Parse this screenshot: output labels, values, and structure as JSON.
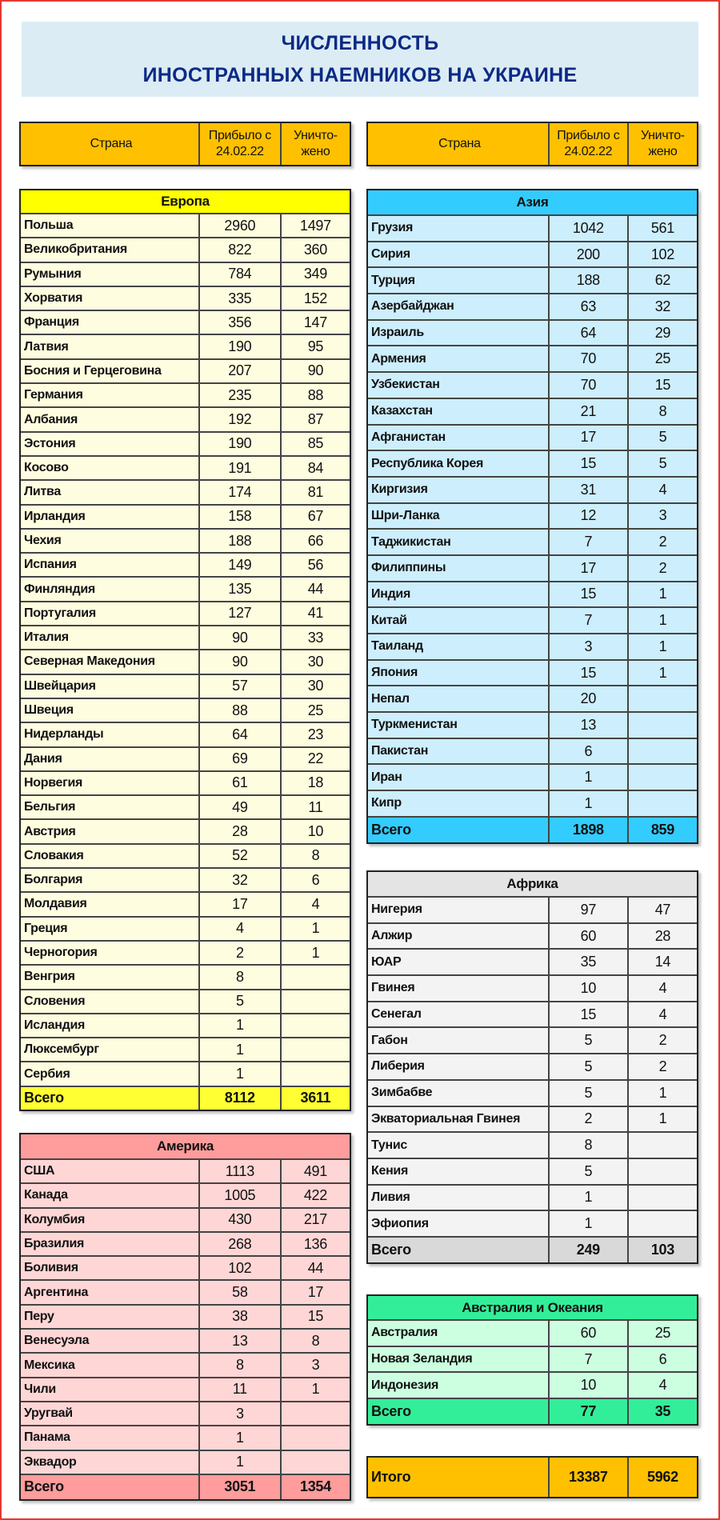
{
  "title": {
    "line1": "ЧИСЛЕННОСТЬ",
    "line2": "ИНОСТРАННЫХ НАЕМНИКОВ НА УКРАИНЕ"
  },
  "column_headers": {
    "country": "Страна",
    "arrived": "Прибыло с 24.02.22",
    "destroyed": "Уничто-жено"
  },
  "colors": {
    "header": "#FFC000",
    "europe": "#FFFF00",
    "asia": "#33CCFF",
    "africa": "#D9D9D9",
    "america": "#FF9999",
    "oceania": "#33EE99"
  },
  "regions": {
    "europe": {
      "name": "Европа",
      "rows": [
        [
          "Польша",
          "2960",
          "1497"
        ],
        [
          "Великобритания",
          "822",
          "360"
        ],
        [
          "Румыния",
          "784",
          "349"
        ],
        [
          "Хорватия",
          "335",
          "152"
        ],
        [
          "Франция",
          "356",
          "147"
        ],
        [
          "Латвия",
          "190",
          "95"
        ],
        [
          "Босния и Герцеговина",
          "207",
          "90"
        ],
        [
          "Германия",
          "235",
          "88"
        ],
        [
          "Албания",
          "192",
          "87"
        ],
        [
          "Эстония",
          "190",
          "85"
        ],
        [
          "Косово",
          "191",
          "84"
        ],
        [
          "Литва",
          "174",
          "81"
        ],
        [
          "Ирландия",
          "158",
          "67"
        ],
        [
          "Чехия",
          "188",
          "66"
        ],
        [
          "Испания",
          "149",
          "56"
        ],
        [
          "Финляндия",
          "135",
          "44"
        ],
        [
          "Португалия",
          "127",
          "41"
        ],
        [
          "Италия",
          "90",
          "33"
        ],
        [
          "Северная Македония",
          "90",
          "30"
        ],
        [
          "Швейцария",
          "57",
          "30"
        ],
        [
          "Швеция",
          "88",
          "25"
        ],
        [
          "Нидерланды",
          "64",
          "23"
        ],
        [
          "Дания",
          "69",
          "22"
        ],
        [
          "Норвегия",
          "61",
          "18"
        ],
        [
          "Бельгия",
          "49",
          "11"
        ],
        [
          "Австрия",
          "28",
          "10"
        ],
        [
          "Словакия",
          "52",
          "8"
        ],
        [
          "Болгария",
          "32",
          "6"
        ],
        [
          "Молдавия",
          "17",
          "4"
        ],
        [
          "Греция",
          "4",
          "1"
        ],
        [
          "Черногория",
          "2",
          "1"
        ],
        [
          "Венгрия",
          "8",
          ""
        ],
        [
          "Словения",
          "5",
          ""
        ],
        [
          "Исландия",
          "1",
          ""
        ],
        [
          "Люксембург",
          "1",
          ""
        ],
        [
          "Сербия",
          "1",
          ""
        ]
      ],
      "total": [
        "Всего",
        "8112",
        "3611"
      ]
    },
    "america": {
      "name": "Америка",
      "rows": [
        [
          "США",
          "1113",
          "491"
        ],
        [
          "Канада",
          "1005",
          "422"
        ],
        [
          "Колумбия",
          "430",
          "217"
        ],
        [
          "Бразилия",
          "268",
          "136"
        ],
        [
          "Боливия",
          "102",
          "44"
        ],
        [
          "Аргентина",
          "58",
          "17"
        ],
        [
          "Перу",
          "38",
          "15"
        ],
        [
          "Венесуэла",
          "13",
          "8"
        ],
        [
          "Мексика",
          "8",
          "3"
        ],
        [
          "Чили",
          "11",
          "1"
        ],
        [
          "Уругвай",
          "3",
          ""
        ],
        [
          "Панама",
          "1",
          ""
        ],
        [
          "Эквадор",
          "1",
          ""
        ]
      ],
      "total": [
        "Всего",
        "3051",
        "1354"
      ]
    },
    "asia": {
      "name": "Азия",
      "rows": [
        [
          "Грузия",
          "1042",
          "561"
        ],
        [
          "Сирия",
          "200",
          "102"
        ],
        [
          "Турция",
          "188",
          "62"
        ],
        [
          "Азербайджан",
          "63",
          "32"
        ],
        [
          "Израиль",
          "64",
          "29"
        ],
        [
          "Армения",
          "70",
          "25"
        ],
        [
          "Узбекистан",
          "70",
          "15"
        ],
        [
          "Казахстан",
          "21",
          "8"
        ],
        [
          "Афганистан",
          "17",
          "5"
        ],
        [
          "Республика Корея",
          "15",
          "5"
        ],
        [
          "Киргизия",
          "31",
          "4"
        ],
        [
          "Шри-Ланка",
          "12",
          "3"
        ],
        [
          "Таджикистан",
          "7",
          "2"
        ],
        [
          "Филиппины",
          "17",
          "2"
        ],
        [
          "Индия",
          "15",
          "1"
        ],
        [
          "Китай",
          "7",
          "1"
        ],
        [
          "Таиланд",
          "3",
          "1"
        ],
        [
          "Япония",
          "15",
          "1"
        ],
        [
          "Непал",
          "20",
          ""
        ],
        [
          "Туркменистан",
          "13",
          ""
        ],
        [
          "Пакистан",
          "6",
          ""
        ],
        [
          "Иран",
          "1",
          ""
        ],
        [
          "Кипр",
          "1",
          ""
        ]
      ],
      "total": [
        "Всего",
        "1898",
        "859"
      ]
    },
    "africa": {
      "name": "Африка",
      "rows": [
        [
          "Нигерия",
          "97",
          "47"
        ],
        [
          "Алжир",
          "60",
          "28"
        ],
        [
          "ЮАР",
          "35",
          "14"
        ],
        [
          "Гвинея",
          "10",
          "4"
        ],
        [
          "Сенегал",
          "15",
          "4"
        ],
        [
          "Габон",
          "5",
          "2"
        ],
        [
          "Либерия",
          "5",
          "2"
        ],
        [
          "Зимбабве",
          "5",
          "1"
        ],
        [
          "Экваториальная Гвинея",
          "2",
          "1"
        ],
        [
          "Тунис",
          "8",
          ""
        ],
        [
          "Кения",
          "5",
          ""
        ],
        [
          "Ливия",
          "1",
          ""
        ],
        [
          "Эфиопия",
          "1",
          ""
        ]
      ],
      "total": [
        "Всего",
        "249",
        "103"
      ]
    },
    "oceania": {
      "name": "Австралия и Океания",
      "rows": [
        [
          "Австралия",
          "60",
          "25"
        ],
        [
          "Новая Зеландия",
          "7",
          "6"
        ],
        [
          "Индонезия",
          "10",
          "4"
        ]
      ],
      "total": [
        "Всего",
        "77",
        "35"
      ]
    }
  },
  "grand_total": [
    "Итого",
    "13387",
    "5962"
  ]
}
